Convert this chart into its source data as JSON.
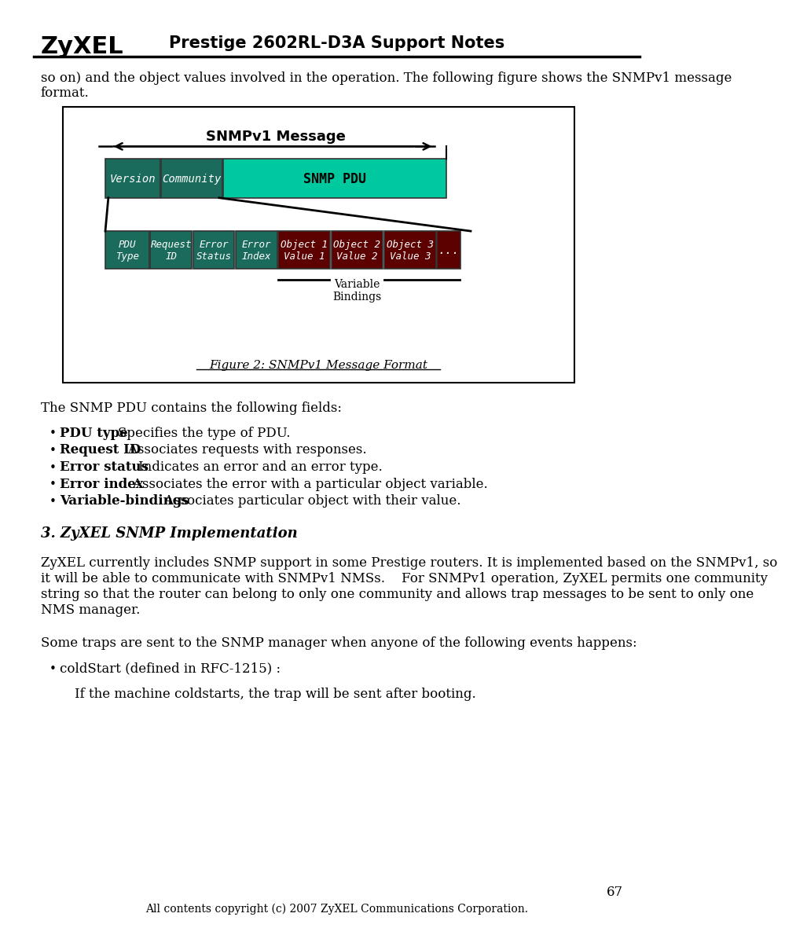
{
  "page_width": 10.8,
  "page_height": 15.27,
  "bg_color": "#ffffff",
  "header_title": "Prestige 2602RL-D3A Support Notes",
  "header_logo": "ZyXEL",
  "footer_text": "All contents copyright (c) 2007 ZyXEL Communications Corporation.",
  "page_number": "67",
  "intro_text1": "so on) and the object values involved in the operation. The following figure shows the SNMPv1 message",
  "intro_text2": "format.",
  "diagram_title": "SNMPv1 Message",
  "box_version": "Version",
  "box_community": "Community",
  "box_snmp_pdu": "SNMP PDU",
  "box_pdu_type": "PDU\nType",
  "box_request_id": "Request\nID",
  "box_error_status": "Error\nStatus",
  "box_error_index": "Error\nIndex",
  "box_obj1": "Object 1\nValue 1",
  "box_obj2": "Object 2\nValue 2",
  "box_obj3": "Object 3\nValue 3",
  "box_dots": "...",
  "var_bindings_label": "Variable\nBindings",
  "figure_caption": "Figure 2: SNMPv1 Message Format",
  "color_teal_dark": "#1a6b5c",
  "color_cyan_bright": "#00c9a0",
  "color_dark_red": "#5c0000",
  "color_white": "#ffffff",
  "color_black": "#000000",
  "section_heading": "3. ZyXEL SNMP Implementation",
  "pdu_contains": "The SNMP PDU contains the following fields:",
  "bullet1_bold": "PDU type",
  "bullet1_rest": "    Specifies the type of PDU.",
  "bullet2_bold": "Request ID",
  "bullet2_rest": "    Associates requests with responses.",
  "bullet3_bold": "Error status",
  "bullet3_rest": "    Indicates an error and an error type.",
  "bullet4_bold": "Error index",
  "bullet4_rest": "    Associates the error with a particular object variable.",
  "bullet5_bold": "Variable-bindings",
  "bullet5_rest": "    Associates particular object with their value.",
  "para1_line1": "ZyXEL currently includes SNMP support in some Prestige routers. It is implemented based on the SNMPv1, so",
  "para1_line2": "it will be able to communicate with SNMPv1 NMSs.    For SNMPv1 operation, ZyXEL permits one community",
  "para1_line3": "string so that the router can belong to only one community and allows trap messages to be sent to only one",
  "para1_line4": "NMS manager.",
  "para2": "Some traps are sent to the SNMP manager when anyone of the following events happens:",
  "bullet_last": "coldStart (defined in RFC-1215) :",
  "bullet_last_sub": "If the machine coldstarts, the trap will be sent after booting."
}
